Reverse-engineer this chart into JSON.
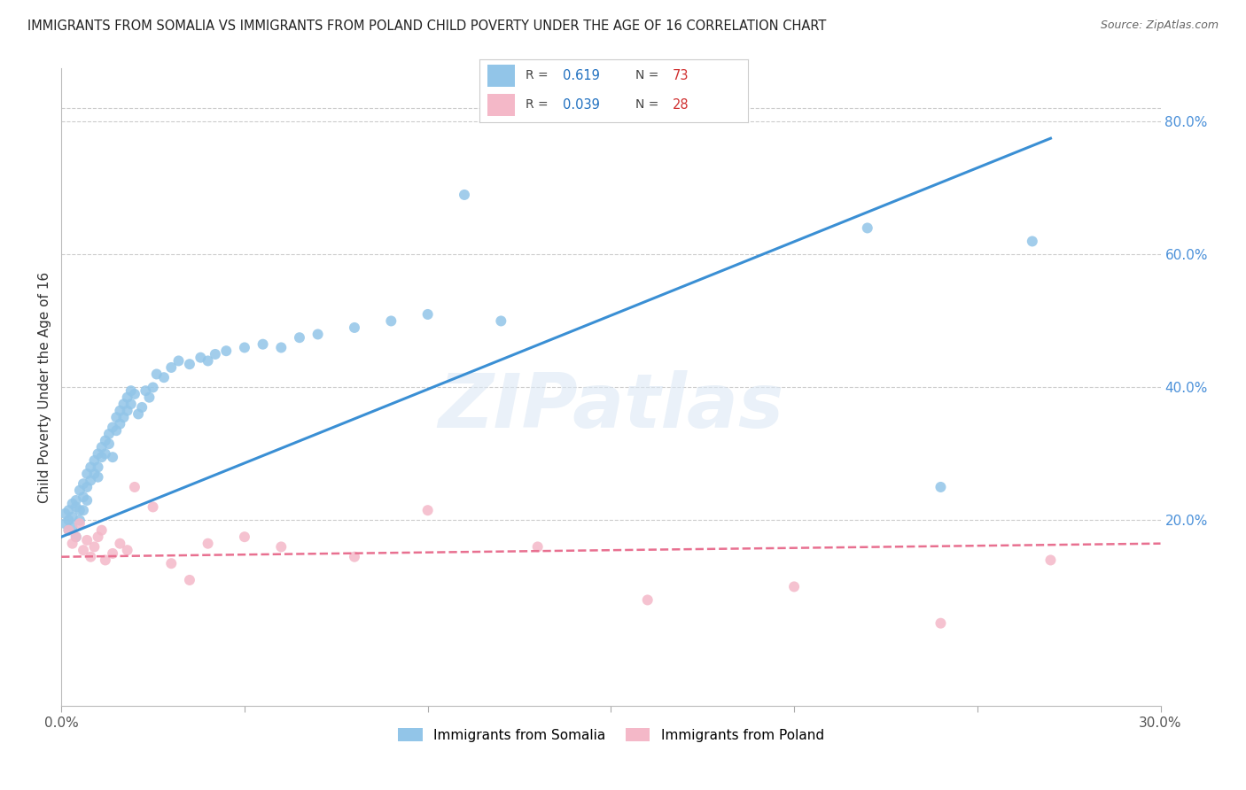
{
  "title": "IMMIGRANTS FROM SOMALIA VS IMMIGRANTS FROM POLAND CHILD POVERTY UNDER THE AGE OF 16 CORRELATION CHART",
  "source": "Source: ZipAtlas.com",
  "ylabel": "Child Poverty Under the Age of 16",
  "xlim": [
    0.0,
    0.3
  ],
  "ylim": [
    -0.08,
    0.88
  ],
  "somalia_R": 0.619,
  "somalia_N": 73,
  "poland_R": 0.039,
  "poland_N": 28,
  "somalia_color": "#92c5e8",
  "poland_color": "#f4b8c8",
  "somalia_line_color": "#3a8fd4",
  "poland_line_color": "#e87090",
  "watermark": "ZIPatlas",
  "legend_label_somalia": "Immigrants from Somalia",
  "legend_label_poland": "Immigrants from Poland",
  "somalia_line_x": [
    0.0,
    0.27
  ],
  "somalia_line_y": [
    0.175,
    0.775
  ],
  "poland_line_x": [
    0.0,
    0.3
  ],
  "poland_line_y": [
    0.145,
    0.165
  ],
  "right_yticks": [
    0.2,
    0.4,
    0.6,
    0.8
  ],
  "right_yticklabels": [
    "20.0%",
    "40.0%",
    "60.0%",
    "80.0%"
  ],
  "somalia_scatter_x": [
    0.001,
    0.001,
    0.002,
    0.002,
    0.002,
    0.003,
    0.003,
    0.003,
    0.004,
    0.004,
    0.004,
    0.005,
    0.005,
    0.005,
    0.006,
    0.006,
    0.006,
    0.007,
    0.007,
    0.007,
    0.008,
    0.008,
    0.009,
    0.009,
    0.01,
    0.01,
    0.01,
    0.011,
    0.011,
    0.012,
    0.012,
    0.013,
    0.013,
    0.014,
    0.014,
    0.015,
    0.015,
    0.016,
    0.016,
    0.017,
    0.017,
    0.018,
    0.018,
    0.019,
    0.019,
    0.02,
    0.021,
    0.022,
    0.023,
    0.024,
    0.025,
    0.026,
    0.028,
    0.03,
    0.032,
    0.035,
    0.038,
    0.04,
    0.042,
    0.045,
    0.05,
    0.055,
    0.06,
    0.065,
    0.07,
    0.08,
    0.09,
    0.1,
    0.11,
    0.12,
    0.22,
    0.24,
    0.265
  ],
  "somalia_scatter_y": [
    0.195,
    0.21,
    0.2,
    0.215,
    0.185,
    0.225,
    0.205,
    0.19,
    0.22,
    0.23,
    0.175,
    0.245,
    0.215,
    0.2,
    0.255,
    0.235,
    0.215,
    0.27,
    0.25,
    0.23,
    0.28,
    0.26,
    0.29,
    0.27,
    0.3,
    0.28,
    0.265,
    0.31,
    0.295,
    0.32,
    0.3,
    0.33,
    0.315,
    0.295,
    0.34,
    0.355,
    0.335,
    0.365,
    0.345,
    0.375,
    0.355,
    0.385,
    0.365,
    0.395,
    0.375,
    0.39,
    0.36,
    0.37,
    0.395,
    0.385,
    0.4,
    0.42,
    0.415,
    0.43,
    0.44,
    0.435,
    0.445,
    0.44,
    0.45,
    0.455,
    0.46,
    0.465,
    0.46,
    0.475,
    0.48,
    0.49,
    0.5,
    0.51,
    0.69,
    0.5,
    0.64,
    0.25,
    0.62
  ],
  "poland_scatter_x": [
    0.002,
    0.003,
    0.004,
    0.005,
    0.006,
    0.007,
    0.008,
    0.009,
    0.01,
    0.011,
    0.012,
    0.014,
    0.016,
    0.018,
    0.02,
    0.025,
    0.03,
    0.035,
    0.04,
    0.05,
    0.06,
    0.08,
    0.1,
    0.13,
    0.16,
    0.2,
    0.24,
    0.27
  ],
  "poland_scatter_y": [
    0.185,
    0.165,
    0.175,
    0.195,
    0.155,
    0.17,
    0.145,
    0.16,
    0.175,
    0.185,
    0.14,
    0.15,
    0.165,
    0.155,
    0.25,
    0.22,
    0.135,
    0.11,
    0.165,
    0.175,
    0.16,
    0.145,
    0.215,
    0.16,
    0.08,
    0.1,
    0.045,
    0.14
  ]
}
